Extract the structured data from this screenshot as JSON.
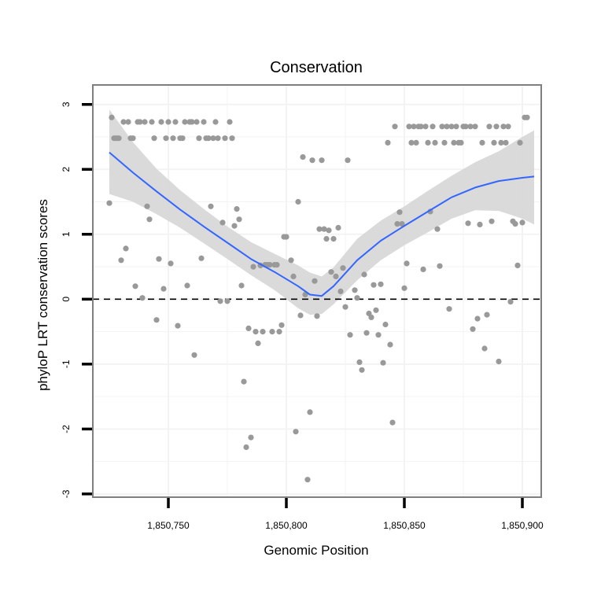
{
  "chart_data": {
    "type": "scatter",
    "title": "Conservation",
    "xlabel": "Genomic Position",
    "ylabel": "phyloP LRT conservation scores",
    "xlim": [
      1850718,
      1850908
    ],
    "ylim": [
      -3.05,
      3.3
    ],
    "x_ticks": [
      1850750,
      1850800,
      1850850,
      1850900
    ],
    "x_tick_labels": [
      "1,850,750",
      "1,850,800",
      "1,850,850",
      "1,850,900"
    ],
    "y_ticks": [
      -3,
      -2,
      -1,
      0,
      1,
      2,
      3
    ],
    "y_tick_labels": [
      "-3",
      "-2",
      "-1",
      "0",
      "1",
      "2",
      "3"
    ],
    "reference_line": {
      "y": 0,
      "style": "dashed",
      "color": "#000000"
    },
    "grid": true,
    "colors": {
      "points": "#999999",
      "smooth": "#3366ff",
      "band": "#d6d6d6",
      "grid": "#f3f3f3",
      "frame": "#7f7f7f"
    },
    "points": [
      [
        1850725,
        1.48
      ],
      [
        1850726,
        2.8
      ],
      [
        1850727,
        2.48
      ],
      [
        1850728,
        2.48
      ],
      [
        1850729,
        2.48
      ],
      [
        1850730,
        0.6
      ],
      [
        1850731,
        2.73
      ],
      [
        1850732,
        0.78
      ],
      [
        1850733,
        2.73
      ],
      [
        1850734,
        2.48
      ],
      [
        1850735,
        2.48
      ],
      [
        1850736,
        0.2
      ],
      [
        1850737,
        2.73
      ],
      [
        1850738,
        2.73
      ],
      [
        1850739,
        0.02
      ],
      [
        1850740,
        2.73
      ],
      [
        1850741,
        1.43
      ],
      [
        1850742,
        1.23
      ],
      [
        1850743,
        2.73
      ],
      [
        1850744,
        2.48
      ],
      [
        1850745,
        -0.32
      ],
      [
        1850746,
        0.62
      ],
      [
        1850747,
        2.73
      ],
      [
        1850748,
        0.16
      ],
      [
        1850749,
        2.48
      ],
      [
        1850750,
        2.73
      ],
      [
        1850751,
        0.55
      ],
      [
        1850752,
        2.48
      ],
      [
        1850753,
        2.73
      ],
      [
        1850754,
        -0.41
      ],
      [
        1850755,
        2.48
      ],
      [
        1850756,
        2.48
      ],
      [
        1850757,
        2.73
      ],
      [
        1850758,
        0.21
      ],
      [
        1850759,
        2.73
      ],
      [
        1850760,
        2.73
      ],
      [
        1850761,
        -0.86
      ],
      [
        1850762,
        2.73
      ],
      [
        1850763,
        2.48
      ],
      [
        1850764,
        0.63
      ],
      [
        1850765,
        2.73
      ],
      [
        1850766,
        2.48
      ],
      [
        1850767,
        2.48
      ],
      [
        1850768,
        1.43
      ],
      [
        1850769,
        2.48
      ],
      [
        1850770,
        2.73
      ],
      [
        1850771,
        2.48
      ],
      [
        1850772,
        -0.03
      ],
      [
        1850773,
        1.18
      ],
      [
        1850774,
        2.48
      ],
      [
        1850775,
        -0.03
      ],
      [
        1850776,
        2.73
      ],
      [
        1850777,
        2.48
      ],
      [
        1850778,
        1.13
      ],
      [
        1850779,
        1.39
      ],
      [
        1850780,
        1.23
      ],
      [
        1850781,
        0.21
      ],
      [
        1850782,
        -1.27
      ],
      [
        1850783,
        -2.28
      ],
      [
        1850784,
        -0.45
      ],
      [
        1850785,
        -2.13
      ],
      [
        1850786,
        0.5
      ],
      [
        1850787,
        -0.5
      ],
      [
        1850788,
        -0.68
      ],
      [
        1850789,
        0.52
      ],
      [
        1850790,
        -0.5
      ],
      [
        1850791,
        0.53
      ],
      [
        1850792,
        0.53
      ],
      [
        1850793,
        0.53
      ],
      [
        1850794,
        -0.5
      ],
      [
        1850795,
        0.53
      ],
      [
        1850796,
        0.53
      ],
      [
        1850797,
        -0.5
      ],
      [
        1850798,
        -0.4
      ],
      [
        1850799,
        0.96
      ],
      [
        1850800,
        0.96
      ],
      [
        1850802,
        0.6
      ],
      [
        1850803,
        0.35
      ],
      [
        1850804,
        -2.04
      ],
      [
        1850805,
        1.5
      ],
      [
        1850806,
        -0.25
      ],
      [
        1850807,
        2.19
      ],
      [
        1850808,
        0.07
      ],
      [
        1850809,
        -2.78
      ],
      [
        1850810,
        -1.74
      ],
      [
        1850811,
        2.14
      ],
      [
        1850812,
        0.28
      ],
      [
        1850813,
        -0.26
      ],
      [
        1850814,
        1.08
      ],
      [
        1850815,
        2.14
      ],
      [
        1850816,
        1.08
      ],
      [
        1850817,
        0.93
      ],
      [
        1850818,
        1.06
      ],
      [
        1850819,
        0.42
      ],
      [
        1850820,
        0.93
      ],
      [
        1850821,
        0.35
      ],
      [
        1850822,
        1.1
      ],
      [
        1850823,
        0.12
      ],
      [
        1850824,
        0.48
      ],
      [
        1850825,
        -0.12
      ],
      [
        1850826,
        2.14
      ],
      [
        1850827,
        -0.55
      ],
      [
        1850829,
        0.14
      ],
      [
        1850830,
        0.02
      ],
      [
        1850831,
        -0.97
      ],
      [
        1850832,
        -1.09
      ],
      [
        1850833,
        0.38
      ],
      [
        1850834,
        -0.52
      ],
      [
        1850835,
        -0.22
      ],
      [
        1850836,
        -0.28
      ],
      [
        1850837,
        0.22
      ],
      [
        1850838,
        -0.17
      ],
      [
        1850839,
        -0.55
      ],
      [
        1850840,
        0.23
      ],
      [
        1850841,
        -0.98
      ],
      [
        1850842,
        -0.39
      ],
      [
        1850843,
        2.41
      ],
      [
        1850844,
        -0.7
      ],
      [
        1850845,
        -1.9
      ],
      [
        1850846,
        2.66
      ],
      [
        1850847,
        1.16
      ],
      [
        1850848,
        1.34
      ],
      [
        1850849,
        1.16
      ],
      [
        1850850,
        0.17
      ],
      [
        1850851,
        0.55
      ],
      [
        1850852,
        2.66
      ],
      [
        1850853,
        2.41
      ],
      [
        1850854,
        2.66
      ],
      [
        1850855,
        2.41
      ],
      [
        1850856,
        2.66
      ],
      [
        1850857,
        2.66
      ],
      [
        1850858,
        0.46
      ],
      [
        1850859,
        2.66
      ],
      [
        1850860,
        2.41
      ],
      [
        1850861,
        1.35
      ],
      [
        1850862,
        2.66
      ],
      [
        1850863,
        2.41
      ],
      [
        1850864,
        1.08
      ],
      [
        1850865,
        0.51
      ],
      [
        1850866,
        2.66
      ],
      [
        1850867,
        2.41
      ],
      [
        1850868,
        2.66
      ],
      [
        1850869,
        -0.15
      ],
      [
        1850870,
        2.66
      ],
      [
        1850871,
        2.41
      ],
      [
        1850872,
        2.66
      ],
      [
        1850873,
        2.41
      ],
      [
        1850874,
        2.41
      ],
      [
        1850875,
        2.66
      ],
      [
        1850876,
        2.66
      ],
      [
        1850877,
        1.17
      ],
      [
        1850878,
        2.66
      ],
      [
        1850879,
        -0.46
      ],
      [
        1850880,
        2.66
      ],
      [
        1850881,
        -0.3
      ],
      [
        1850882,
        1.15
      ],
      [
        1850883,
        2.41
      ],
      [
        1850884,
        -0.76
      ],
      [
        1850885,
        -0.24
      ],
      [
        1850886,
        2.66
      ],
      [
        1850887,
        1.2
      ],
      [
        1850888,
        2.41
      ],
      [
        1850889,
        2.66
      ],
      [
        1850890,
        -0.96
      ],
      [
        1850891,
        2.41
      ],
      [
        1850892,
        2.66
      ],
      [
        1850893,
        2.41
      ],
      [
        1850894,
        2.66
      ],
      [
        1850895,
        -0.04
      ],
      [
        1850896,
        1.2
      ],
      [
        1850897,
        1.16
      ],
      [
        1850898,
        0.52
      ],
      [
        1850899,
        2.41
      ],
      [
        1850900,
        1.18
      ],
      [
        1850901,
        2.8
      ],
      [
        1850902,
        2.8
      ]
    ],
    "smooth_line": {
      "x": [
        1850725,
        1850735,
        1850745,
        1850755,
        1850765,
        1850775,
        1850785,
        1850795,
        1850805,
        1850810,
        1850815,
        1850820,
        1850830,
        1850840,
        1850850,
        1850860,
        1850870,
        1850880,
        1850890,
        1850900,
        1850905
      ],
      "y": [
        2.26,
        1.95,
        1.66,
        1.38,
        1.12,
        0.87,
        0.62,
        0.42,
        0.2,
        0.07,
        0.05,
        0.2,
        0.6,
        0.9,
        1.13,
        1.35,
        1.57,
        1.72,
        1.82,
        1.87,
        1.89
      ],
      "ymin": [
        1.62,
        1.5,
        1.31,
        1.1,
        0.86,
        0.62,
        0.37,
        0.14,
        -0.14,
        -0.24,
        -0.23,
        -0.08,
        0.29,
        0.6,
        0.83,
        1.03,
        1.24,
        1.37,
        1.36,
        1.24,
        1.15
      ],
      "ymax": [
        2.92,
        2.42,
        2.01,
        1.68,
        1.39,
        1.12,
        0.88,
        0.7,
        0.52,
        0.41,
        0.35,
        0.49,
        0.93,
        1.21,
        1.43,
        1.67,
        1.9,
        2.11,
        2.28,
        2.5,
        2.6
      ]
    }
  }
}
